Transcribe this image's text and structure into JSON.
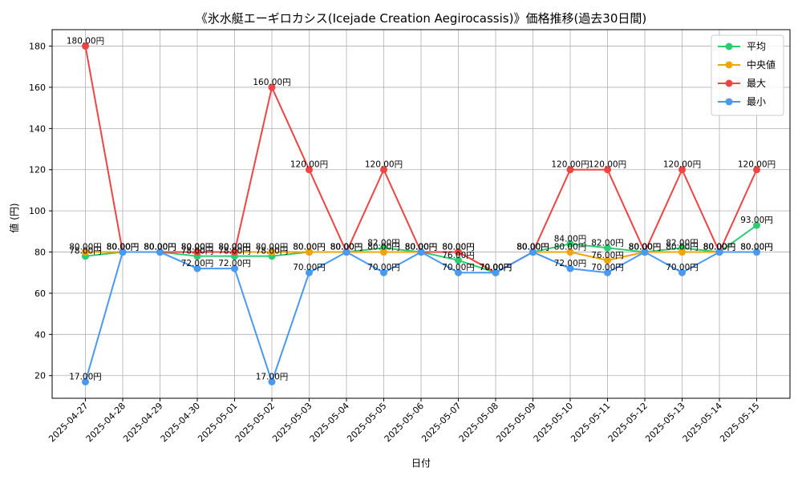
{
  "chart_data": {
    "type": "line",
    "title": "《氷水艇エーギロカシス(Icejade Creation Aegirocassis)》価格推移(過去30日間)",
    "xlabel": "日付",
    "ylabel": "値 (円)",
    "x": [
      "2025-04-27",
      "2025-04-28",
      "2025-04-29",
      "2025-04-30",
      "2025-05-01",
      "2025-05-02",
      "2025-05-03",
      "2025-05-04",
      "2025-05-05",
      "2025-05-06",
      "2025-05-07",
      "2025-05-08",
      "2025-05-09",
      "2025-05-10",
      "2025-05-11",
      "2025-05-12",
      "2025-05-13",
      "2025-05-14",
      "2025-05-15"
    ],
    "ylim": [
      9,
      188
    ],
    "yticks": [
      20,
      40,
      60,
      80,
      100,
      120,
      140,
      160,
      180
    ],
    "grid": true,
    "legend_position": "top-right",
    "label_suffix": "円",
    "series": [
      {
        "name": "平均",
        "color": "#2ecc71",
        "values": [
          78,
          80,
          80,
          78,
          78,
          78,
          80,
          80,
          82,
          80,
          76,
          70,
          80,
          84,
          82,
          80,
          82,
          80,
          93
        ]
      },
      {
        "name": "中央値",
        "color": "#f0a30a",
        "values": [
          80,
          80,
          80,
          80,
          80,
          80,
          80,
          80,
          80,
          80,
          80,
          70,
          80,
          80,
          76,
          80,
          80,
          80,
          80
        ]
      },
      {
        "name": "最大",
        "color": "#ef4444",
        "values": [
          180,
          80,
          80,
          80,
          80,
          160,
          120,
          80,
          120,
          80,
          80,
          70,
          80,
          120,
          120,
          80,
          120,
          80,
          120
        ]
      },
      {
        "name": "最小",
        "color": "#4a99f0",
        "values": [
          17,
          80,
          80,
          72,
          72,
          17,
          70,
          80,
          70,
          80,
          70,
          70,
          80,
          72,
          70,
          80,
          70,
          80,
          80
        ]
      }
    ]
  }
}
